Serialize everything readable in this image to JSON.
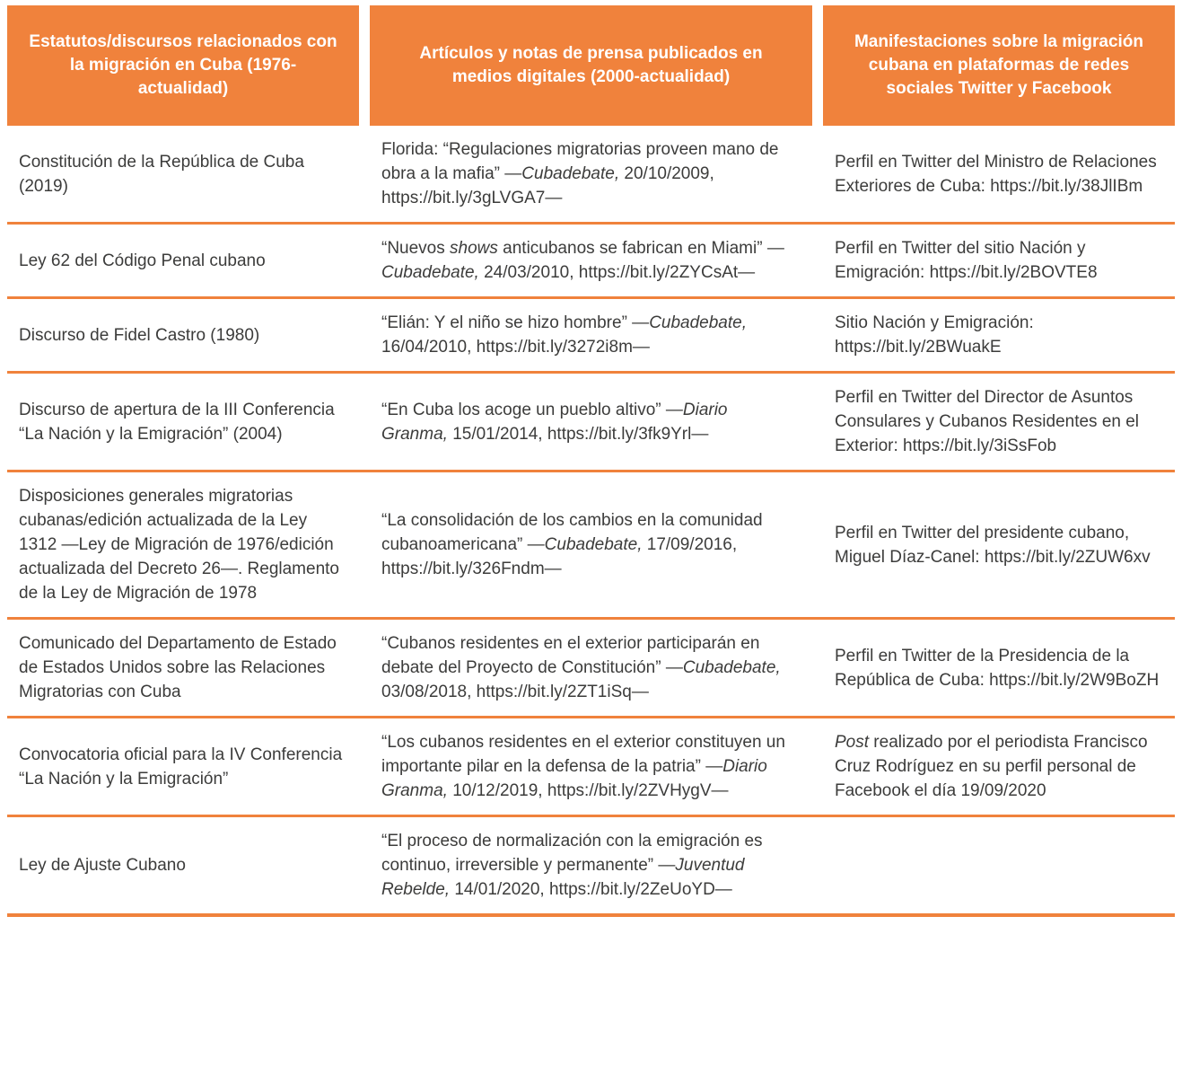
{
  "colors": {
    "accent": "#F0823C",
    "text": "#3C3C3B",
    "header_text": "#FFFFFF"
  },
  "table": {
    "headers": [
      "Estatutos/discursos relacionados con la migración en Cuba (1976-actualidad)",
      "Artículos y notas de prensa publicados en medios digitales (2000-actualidad)",
      "Manifestaciones sobre la migración cubana en plataformas de redes sociales Twitter y Facebook"
    ],
    "rows": [
      {
        "statute": [
          {
            "t": "Constitución de la República de Cuba (2019)"
          }
        ],
        "article": [
          {
            "t": "Florida: “Regulaciones migratorias proveen mano de obra a la mafia” —"
          },
          {
            "t": "Cubadebate,",
            "i": true
          },
          {
            "t": " 20/10/2009, https://bit.ly/3gLVGA7—"
          }
        ],
        "social": [
          {
            "t": "Perfil en Twitter del Ministro de Relaciones Exteriores de Cuba: https://bit.ly/38JlIBm"
          }
        ]
      },
      {
        "statute": [
          {
            "t": "Ley 62 del Código Penal cubano"
          }
        ],
        "article": [
          {
            "t": "“Nuevos "
          },
          {
            "t": "shows",
            "i": true
          },
          {
            "t": " anticubanos se fabrican en Miami” —"
          },
          {
            "t": "Cubadebate,",
            "i": true
          },
          {
            "t": " 24/03/2010, https://bit.ly/2ZYCsAt—"
          }
        ],
        "social": [
          {
            "t": "Perfil en Twitter del sitio Nación y Emigración: https://bit.ly/2BOVTE8"
          }
        ]
      },
      {
        "statute": [
          {
            "t": "Discurso de Fidel Castro (1980)"
          }
        ],
        "article": [
          {
            "t": "“Elián: Y el niño se hizo hombre” —"
          },
          {
            "t": "Cubadebate,",
            "i": true
          },
          {
            "t": " 16/04/2010, https://bit.ly/3272i8m—"
          }
        ],
        "social": [
          {
            "t": "Sitio Nación y Emigración: https://bit.ly/2BWuakE"
          }
        ]
      },
      {
        "statute": [
          {
            "t": "Discurso de apertura de la III Conferencia “La Nación y la Emigración” (2004)"
          }
        ],
        "article": [
          {
            "t": "“En Cuba los acoge un pueblo altivo” —"
          },
          {
            "t": "Diario Granma,",
            "i": true
          },
          {
            "t": " 15/01/2014, https://bit.ly/3fk9Yrl—"
          }
        ],
        "social": [
          {
            "t": "Perfil en Twitter del Director de Asuntos Consulares y Cubanos Residentes en el Exterior: https://bit.ly/3iSsFob"
          }
        ]
      },
      {
        "statute": [
          {
            "t": "Disposiciones generales migratorias cubanas/edición actualizada de la Ley 1312 —Ley de Migración de 1976/edición actualizada del Decreto 26—. Reglamento de la Ley de Migración de 1978"
          }
        ],
        "article": [
          {
            "t": "“La consolidación de los cambios en la comunidad cubanoamericana” —"
          },
          {
            "t": "Cubadebate,",
            "i": true
          },
          {
            "t": " 17/09/2016, https://bit.ly/326Fndm—"
          }
        ],
        "social": [
          {
            "t": "Perfil en Twitter del presidente cubano, Miguel Díaz-Canel: https://bit.ly/2ZUW6xv"
          }
        ]
      },
      {
        "statute": [
          {
            "t": "Comunicado del Departamento de Estado de Estados Unidos sobre las Relaciones Migratorias con Cuba"
          }
        ],
        "article": [
          {
            "t": "“Cubanos residentes en el exterior participarán en debate del Proyecto de Constitución” —"
          },
          {
            "t": "Cubadebate,",
            "i": true
          },
          {
            "t": " 03/08/2018, https://bit.ly/2ZT1iSq—"
          }
        ],
        "social": [
          {
            "t": "Perfil en Twitter de la Presidencia de la República de Cuba: https://bit.ly/2W9BoZH"
          }
        ]
      },
      {
        "statute": [
          {
            "t": "Convocatoria oficial para la IV Conferencia “La Nación y la Emigración”"
          }
        ],
        "article": [
          {
            "t": "“Los cubanos residentes en el exterior constituyen un importante pilar en la defensa de la patria” —"
          },
          {
            "t": "Diario Granma,",
            "i": true
          },
          {
            "t": " 10/12/2019, https://bit.ly/2ZVHygV—"
          }
        ],
        "social": [
          {
            "t": "Post",
            "i": true
          },
          {
            "t": " realizado por el periodista Francisco Cruz Rodríguez en su perfil personal de Facebook el día 19/09/2020"
          }
        ]
      },
      {
        "statute": [
          {
            "t": "Ley de Ajuste Cubano"
          }
        ],
        "article": [
          {
            "t": "“El proceso de normalización con la emigración es continuo, irreversible y permanente” —"
          },
          {
            "t": "Juventud Rebelde,",
            "i": true
          },
          {
            "t": " 14/01/2020, https://bit.ly/2ZeUoYD—"
          }
        ],
        "social": []
      }
    ]
  }
}
